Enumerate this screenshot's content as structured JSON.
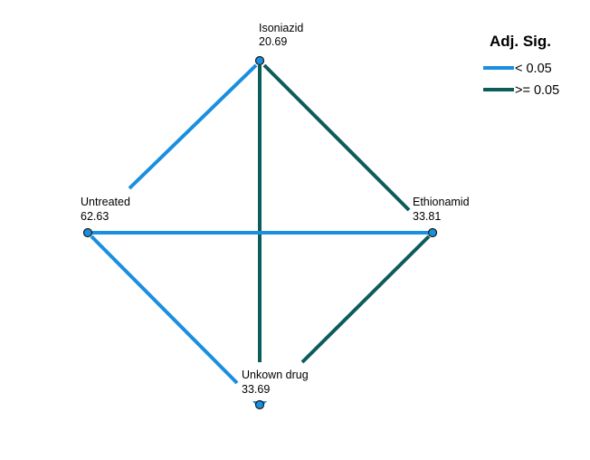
{
  "colors": {
    "significant": "#1a8fe0",
    "not_significant": "#0d5c5c",
    "node_fill": "#1a8fe0",
    "node_stroke": "#1a1a1a"
  },
  "legend": {
    "title": "Adj. Sig.",
    "items": [
      {
        "label": "< 0.05",
        "color_key": "significant"
      },
      {
        "label": ">= 0.05",
        "color_key": "not_significant"
      }
    ]
  },
  "nodes": [
    {
      "id": "isoniazid",
      "name": "Isoniazid",
      "value": "20.69"
    },
    {
      "id": "untreated",
      "name": "Untreated",
      "value": "62.63"
    },
    {
      "id": "ethionamid",
      "name": "Ethionamid",
      "value": "33.81"
    },
    {
      "id": "unknown",
      "name": "Unkown drug",
      "value": "33.69"
    }
  ],
  "edges": [
    {
      "from": "isoniazid",
      "to": "untreated",
      "sig": "< 0.05"
    },
    {
      "from": "isoniazid",
      "to": "ethionamid",
      "sig": ">= 0.05"
    },
    {
      "from": "isoniazid",
      "to": "unknown",
      "sig": ">= 0.05"
    },
    {
      "from": "untreated",
      "to": "ethionamid",
      "sig": "< 0.05"
    },
    {
      "from": "untreated",
      "to": "unknown",
      "sig": "< 0.05"
    },
    {
      "from": "ethionamid",
      "to": "unknown",
      "sig": ">= 0.05"
    }
  ]
}
